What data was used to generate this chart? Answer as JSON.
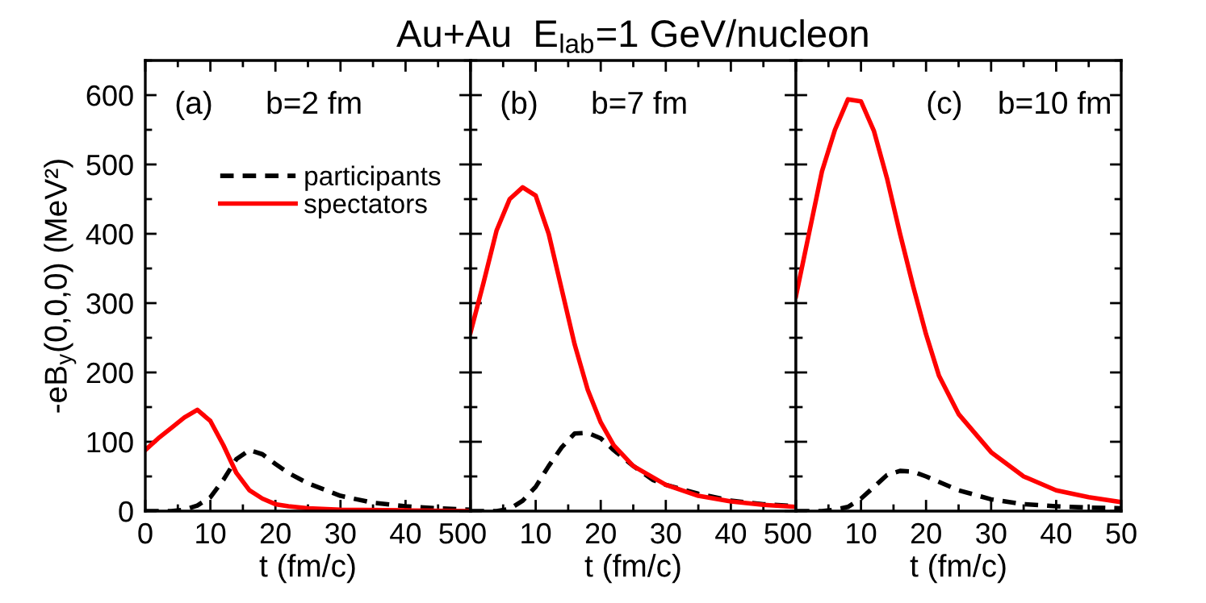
{
  "chart_data": [
    {
      "type": "line",
      "ylabel": "-eB$_{y}$(0,0,0) (MeV²)",
      "xlabel": "t (fm/c)",
      "xlim": [
        0,
        50
      ],
      "xticks": [
        0,
        10,
        20,
        30,
        40,
        50
      ],
      "ylim": [
        0,
        650
      ],
      "yticks": [
        0,
        100,
        200,
        300,
        400,
        500,
        600
      ],
      "legend": "top",
      "annotations": [
        "(a)",
        "b=2 fm"
      ],
      "series": [
        {
          "name": "participants",
          "color": "#000000",
          "line_style": "dashed",
          "x": [
            0,
            4,
            6,
            8,
            10,
            12,
            14,
            16,
            18,
            20,
            22,
            25,
            30,
            35,
            40,
            45,
            50
          ],
          "values": [
            0,
            0,
            2,
            8,
            20,
            45,
            75,
            88,
            82,
            68,
            55,
            40,
            22,
            12,
            7,
            4,
            2
          ]
        },
        {
          "name": "spectators",
          "color": "#ff0000",
          "line_style": "solid",
          "x": [
            0,
            2,
            4,
            6,
            8,
            10,
            12,
            14,
            16,
            18,
            20,
            22,
            25,
            30,
            40,
            50
          ],
          "values": [
            88,
            105,
            120,
            135,
            146,
            130,
            95,
            55,
            30,
            18,
            10,
            7,
            4,
            2,
            1,
            0
          ]
        }
      ]
    },
    {
      "type": "line",
      "title": "Au+Au  E$_{lab}$=1 GeV/nucleon",
      "xlabel": "t (fm/c)",
      "xlim": [
        0,
        50
      ],
      "xticks": [
        0,
        10,
        20,
        30,
        40,
        50
      ],
      "ylim": [
        0,
        650
      ],
      "yticks": [
        0,
        100,
        200,
        300,
        400,
        500,
        600
      ],
      "tick_labels": "x",
      "annotations": [
        "(b)",
        "b=7 fm"
      ],
      "series": [
        {
          "color": "#000000",
          "line_style": "dashed",
          "x": [
            0,
            4,
            6,
            8,
            10,
            12,
            14,
            16,
            18,
            20,
            22,
            25,
            28,
            30,
            35,
            40,
            45,
            50
          ],
          "values": [
            0,
            0,
            3,
            15,
            35,
            65,
            92,
            112,
            113,
            105,
            88,
            65,
            45,
            38,
            25,
            15,
            10,
            7
          ]
        },
        {
          "color": "#ff0000",
          "line_style": "solid",
          "x": [
            0,
            2,
            4,
            6,
            8,
            10,
            12,
            14,
            16,
            18,
            20,
            22,
            25,
            30,
            35,
            40,
            45,
            50
          ],
          "values": [
            258,
            330,
            405,
            450,
            467,
            455,
            400,
            320,
            240,
            175,
            128,
            95,
            65,
            38,
            22,
            14,
            9,
            6
          ]
        }
      ]
    },
    {
      "type": "line",
      "xlabel": "t (fm/c)",
      "xlim": [
        0,
        50
      ],
      "xticks": [
        0,
        10,
        20,
        30,
        40,
        50
      ],
      "ylim": [
        0,
        650
      ],
      "yticks": [
        0,
        100,
        200,
        300,
        400,
        500,
        600
      ],
      "tick_labels": "x",
      "annotations": [
        "(c)",
        "b=10 fm"
      ],
      "series": [
        {
          "color": "#000000",
          "line_style": "dashed",
          "x": [
            0,
            4,
            6,
            8,
            10,
            12,
            14,
            16,
            18,
            20,
            25,
            30,
            35,
            40,
            45,
            50
          ],
          "values": [
            0,
            0,
            2,
            6,
            18,
            35,
            52,
            58,
            57,
            50,
            30,
            17,
            10,
            7,
            5,
            4
          ]
        },
        {
          "color": "#ff0000",
          "line_style": "solid",
          "x": [
            0,
            2,
            4,
            6,
            8,
            10,
            12,
            14,
            16,
            18,
            20,
            22,
            25,
            30,
            35,
            40,
            45,
            50
          ],
          "values": [
            310,
            400,
            490,
            550,
            594,
            591,
            548,
            480,
            400,
            325,
            255,
            195,
            140,
            85,
            50,
            30,
            20,
            13
          ]
        }
      ]
    }
  ]
}
